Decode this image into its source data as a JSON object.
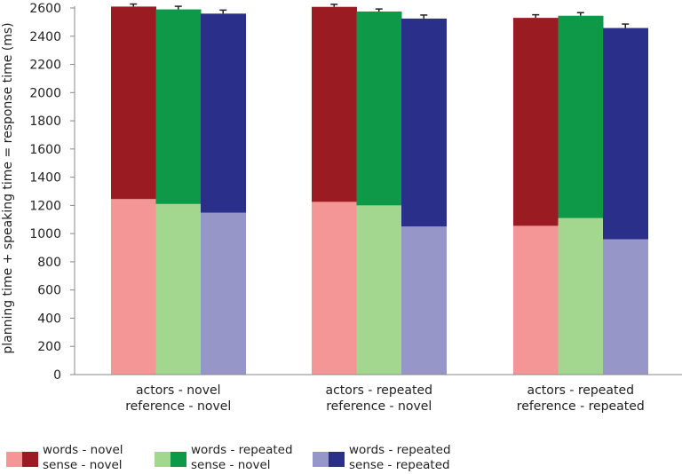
{
  "chart_data": {
    "type": "bar",
    "stacked": true,
    "title": "",
    "xlabel": "",
    "ylabel": "planning time + speaking time = response time (ms)",
    "ylim": [
      0,
      2600
    ],
    "yticks": [
      0,
      200,
      400,
      600,
      800,
      1000,
      1200,
      1400,
      1600,
      1800,
      2000,
      2200,
      2400,
      2600
    ],
    "categories": [
      [
        "actors - novel",
        "reference - novel"
      ],
      [
        "actors - repeated",
        "reference - novel"
      ],
      [
        "actors - repeated",
        "reference - repeated"
      ]
    ],
    "series": [
      {
        "name": "words - novel / sense - novel",
        "planning": [
          1245,
          1225,
          1055
        ],
        "total": [
          2610,
          2608,
          2530
        ],
        "error": [
          18,
          18,
          22
        ],
        "light_color": "#f49696",
        "dark_color": "#9a1b22"
      },
      {
        "name": "words - repeated / sense - novel",
        "planning": [
          1210,
          1200,
          1110
        ],
        "total": [
          2590,
          2575,
          2545
        ],
        "error": [
          22,
          18,
          22
        ],
        "light_color": "#a3d68f",
        "dark_color": "#0e9948"
      },
      {
        "name": "words - repeated / sense - repeated",
        "planning": [
          1148,
          1050,
          960
        ],
        "total": [
          2560,
          2525,
          2458
        ],
        "error": [
          25,
          25,
          28
        ],
        "light_color": "#9696c8",
        "dark_color": "#2a2f89"
      }
    ]
  },
  "legend": [
    {
      "line1": "words - novel",
      "line2": "sense - novel",
      "light": "#f49696",
      "dark": "#9a1b22"
    },
    {
      "line1": "words - repeated",
      "line2": "sense - novel",
      "light": "#a3d68f",
      "dark": "#0e9948"
    },
    {
      "line1": "words - repeated",
      "line2": "sense - repeated",
      "light": "#9696c8",
      "dark": "#2a2f89"
    }
  ]
}
